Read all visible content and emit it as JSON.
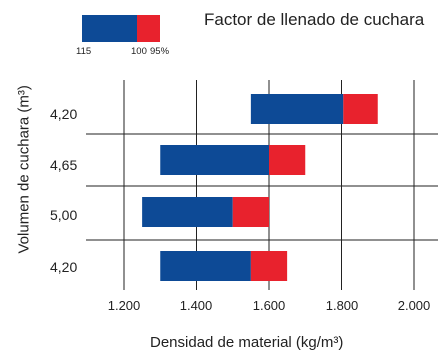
{
  "chart_data": {
    "type": "bar",
    "orientation": "horizontal-floating",
    "title": "Factor de llenado de cuchara",
    "xlabel": "Densidad de material (kg/m³)",
    "ylabel": "Volumen de cuchara (m³)",
    "xlim": [
      1100,
      2050
    ],
    "xticks": [
      "1.200",
      "1.400",
      "1.600",
      "1.800",
      "2.000"
    ],
    "xtick_values": [
      1200,
      1400,
      1600,
      1800,
      2000
    ],
    "legend": {
      "labels": [
        "115",
        "100",
        "95%"
      ],
      "position": "top-left"
    },
    "categories": [
      "4,20",
      "4,65",
      "5,00",
      "4,20"
    ],
    "series": [
      {
        "name": "115",
        "color": "#0d4a96",
        "ranges": [
          [
            1550,
            1805
          ],
          [
            1300,
            1600
          ],
          [
            1250,
            1500
          ],
          [
            1300,
            1550
          ]
        ]
      },
      {
        "name": "100",
        "color": "#e8222d",
        "ranges": [
          [
            1805,
            1900
          ],
          [
            1600,
            1700
          ],
          [
            1500,
            1600
          ],
          [
            1550,
            1650
          ]
        ]
      }
    ],
    "grid": true
  }
}
